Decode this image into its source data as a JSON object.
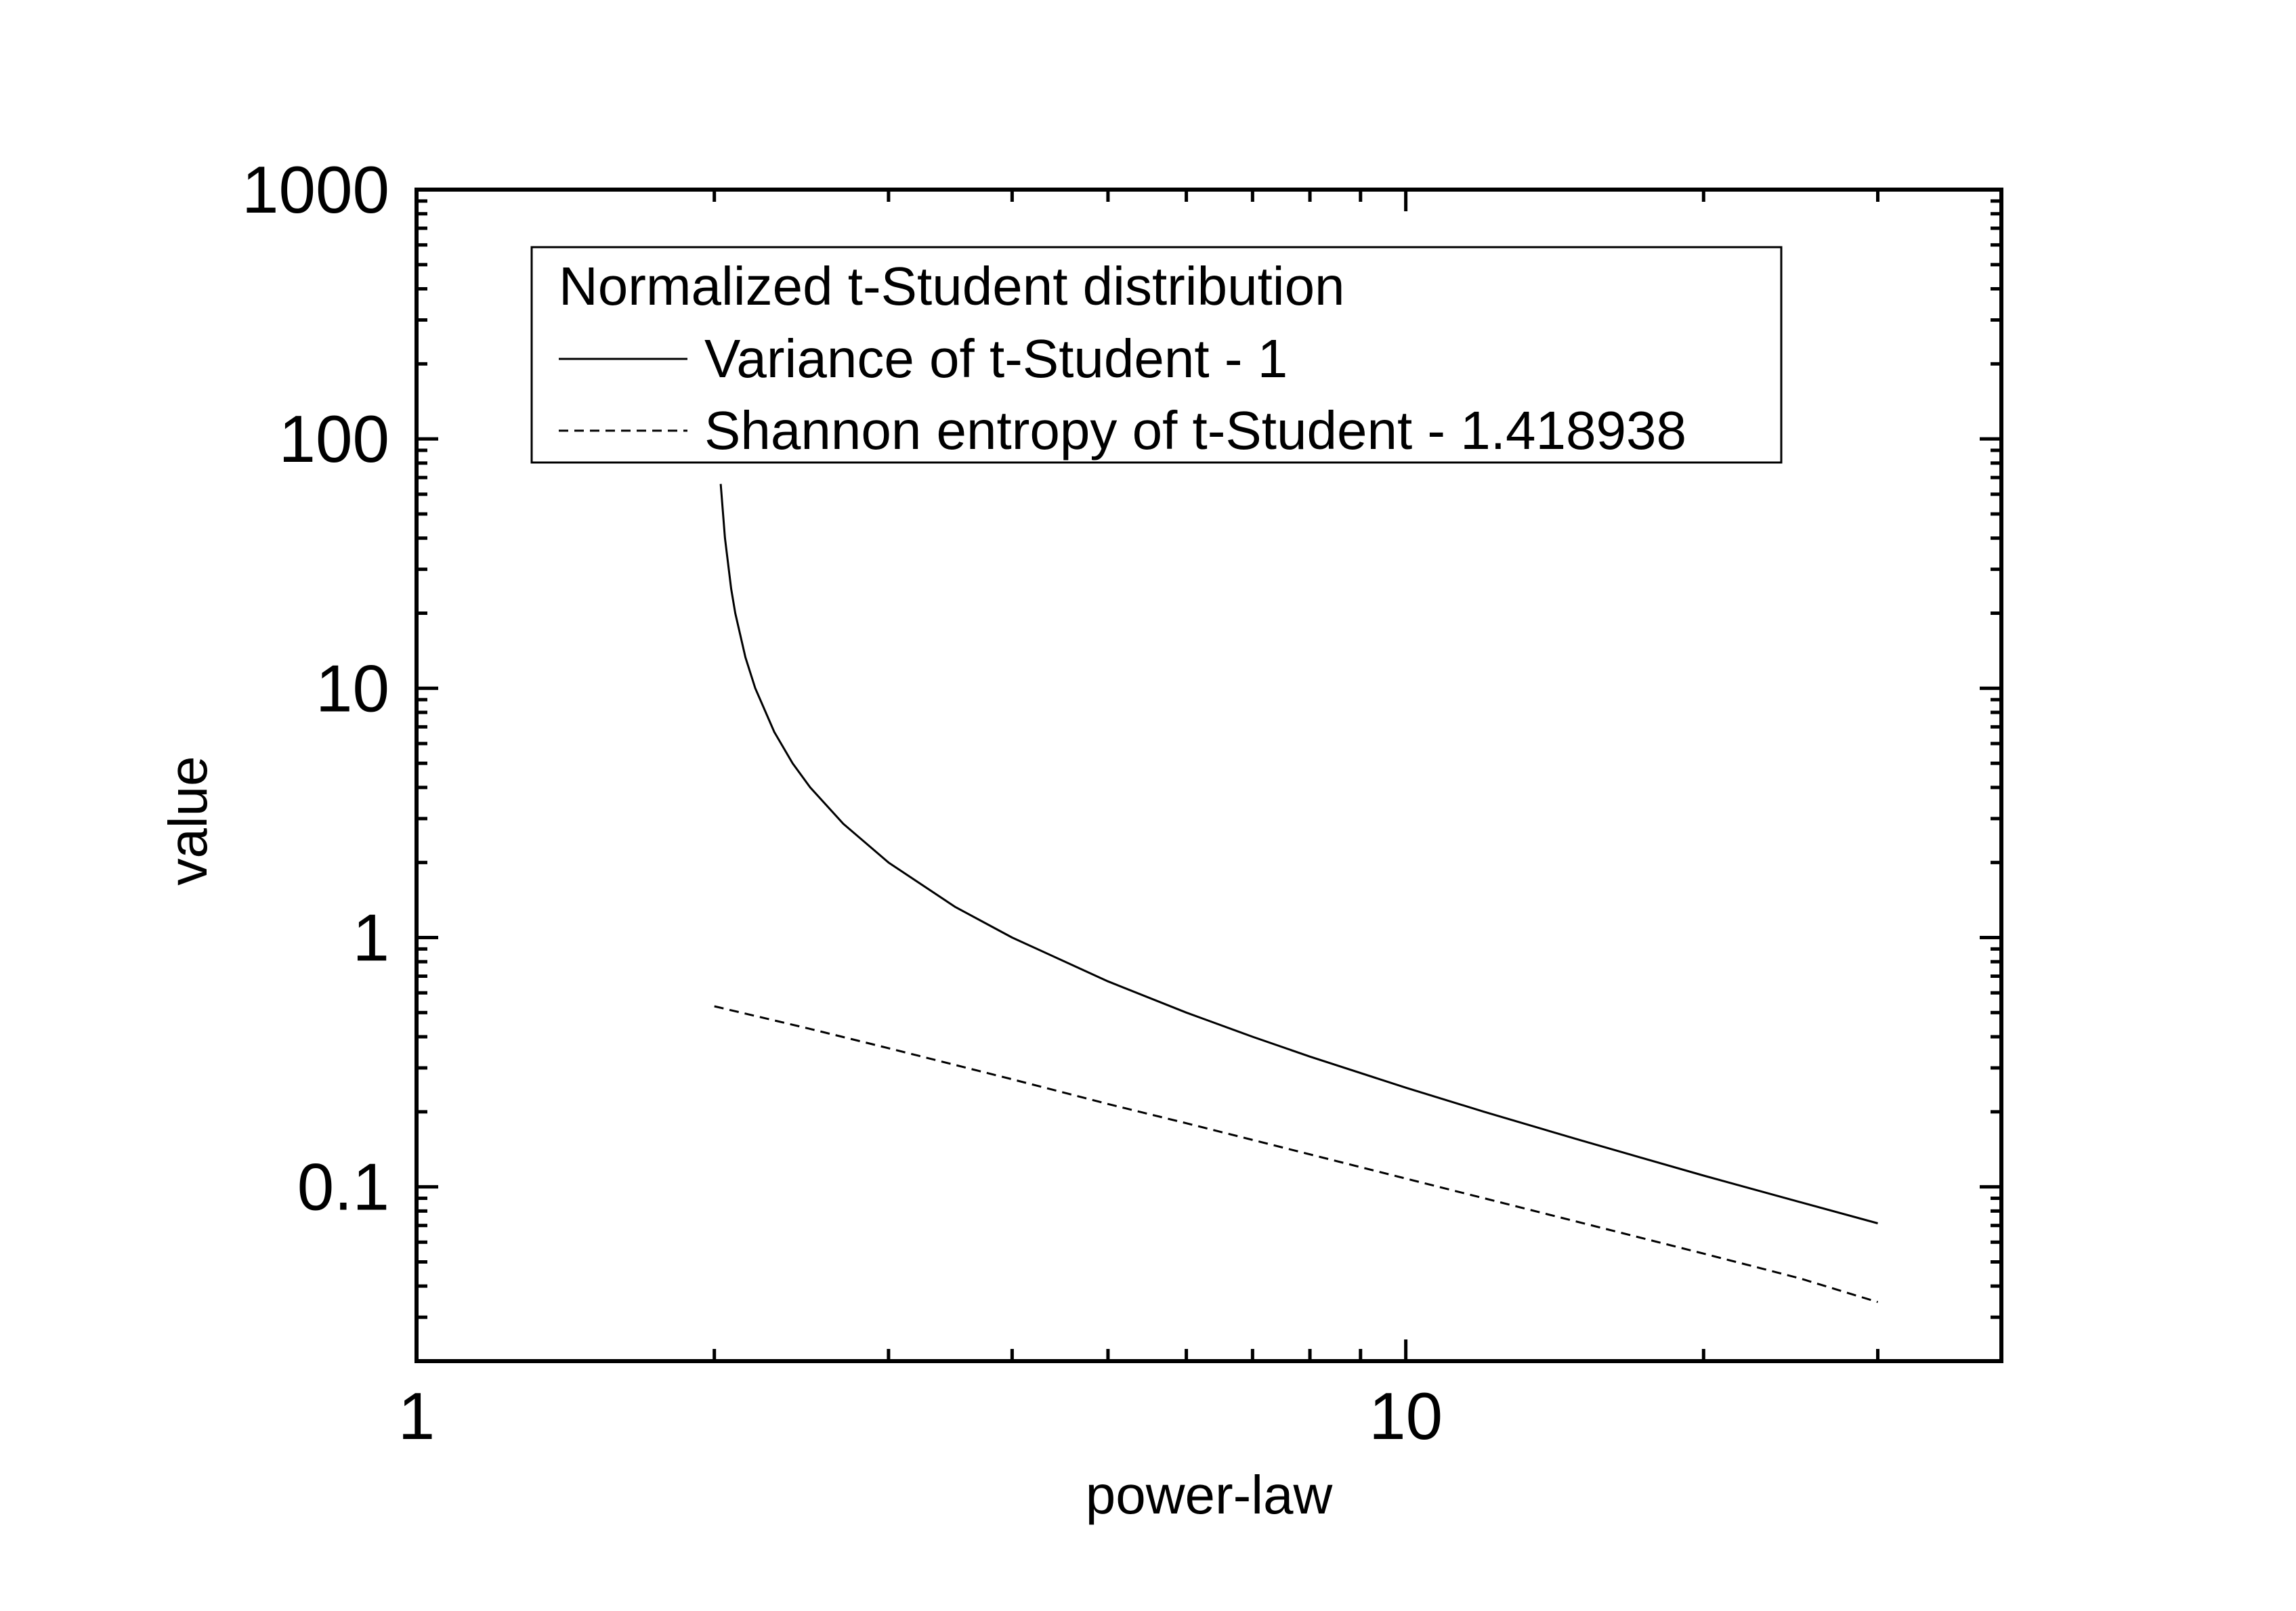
{
  "chart_data": {
    "type": "line",
    "title": "",
    "xlabel": "power-law",
    "ylabel": "value",
    "xscale": "log",
    "yscale": "log",
    "xlim": [
      1,
      40
    ],
    "ylim": [
      0.02,
      1000
    ],
    "xticks": [
      {
        "value": 1,
        "label": "1"
      },
      {
        "value": 10,
        "label": "10"
      }
    ],
    "yticks": [
      {
        "value": 0.1,
        "label": "0.1"
      },
      {
        "value": 1,
        "label": "1"
      },
      {
        "value": 10,
        "label": "10"
      },
      {
        "value": 100,
        "label": "100"
      },
      {
        "value": 1000,
        "label": "1000"
      }
    ],
    "grid": false,
    "legend": {
      "placement": "top-left",
      "title": "Normalized t-Student distribution",
      "entries": [
        {
          "name": "Variance of t-Student - 1",
          "style": "solid"
        },
        {
          "name": "Shannon entropy of t-Student - 1.418938",
          "style": "dashed"
        }
      ]
    },
    "series": [
      {
        "name": "Variance of t-Student - 1",
        "style": "solid",
        "color": "#000000",
        "points": [
          [
            2.03,
            66
          ],
          [
            2.05,
            40
          ],
          [
            2.08,
            25
          ],
          [
            2.1,
            20
          ],
          [
            2.15,
            13.3
          ],
          [
            2.2,
            10
          ],
          [
            2.3,
            6.67
          ],
          [
            2.4,
            5.0
          ],
          [
            2.5,
            4.0
          ],
          [
            2.7,
            2.86
          ],
          [
            3.0,
            2.0
          ],
          [
            3.5,
            1.33
          ],
          [
            4.0,
            1.0
          ],
          [
            5.0,
            0.667
          ],
          [
            6.0,
            0.5
          ],
          [
            7.0,
            0.4
          ],
          [
            8.0,
            0.333
          ],
          [
            10.0,
            0.25
          ],
          [
            12.0,
            0.2
          ],
          [
            15.0,
            0.154
          ],
          [
            20.0,
            0.111
          ],
          [
            25.0,
            0.087
          ],
          [
            30.0,
            0.0714
          ]
        ]
      },
      {
        "name": "Shannon entropy of t-Student - 1.418938",
        "style": "dashed",
        "color": "#000000",
        "points": [
          [
            2.0,
            0.53
          ],
          [
            2.5,
            0.43
          ],
          [
            3.0,
            0.36
          ],
          [
            4.0,
            0.27
          ],
          [
            5.0,
            0.215
          ],
          [
            6.0,
            0.18
          ],
          [
            8.0,
            0.135
          ],
          [
            10.0,
            0.108
          ],
          [
            12.0,
            0.09
          ],
          [
            15.0,
            0.072
          ],
          [
            20.0,
            0.054
          ],
          [
            25.0,
            0.043
          ],
          [
            30.0,
            0.0345
          ]
        ]
      }
    ]
  }
}
